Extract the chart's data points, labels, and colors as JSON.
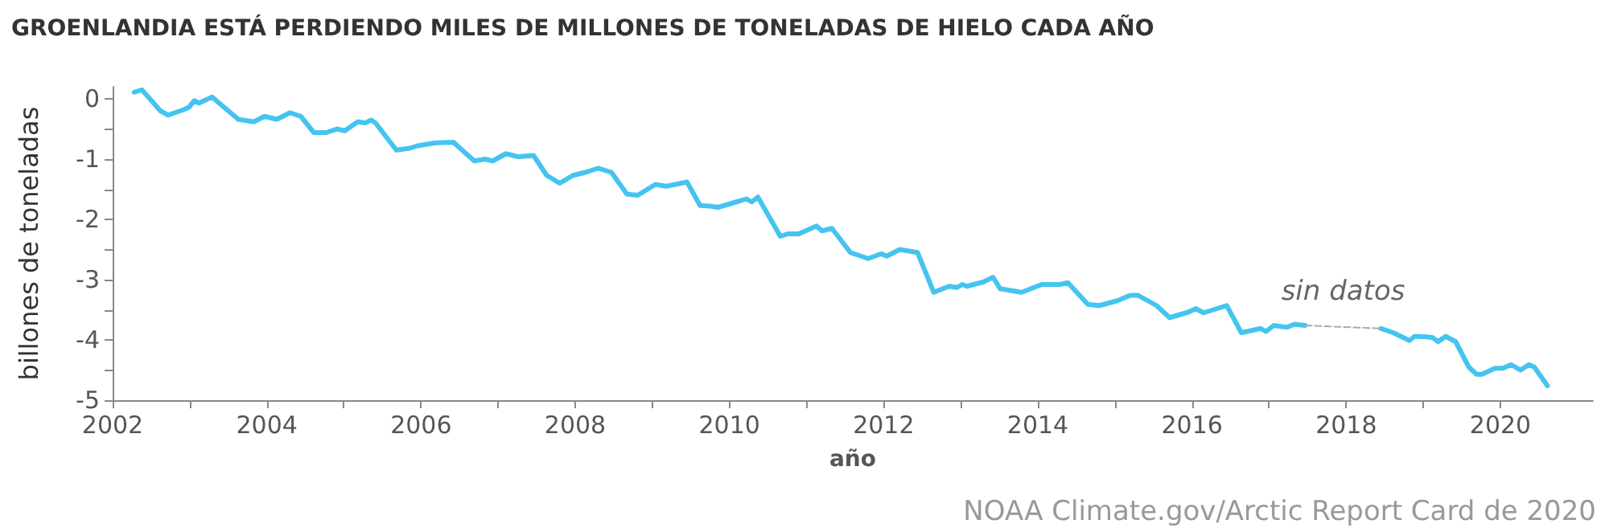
{
  "chart_data": {
    "type": "line",
    "title": "GROENLANDIA ESTÁ PERDIENDO MILES DE MILLONES DE TONELADAS DE HIELO CADA AÑO",
    "xlabel": "año",
    "ylabel": "billones de toneladas",
    "series": [
      {
        "color": "#45c4f0",
        "x": [
          2002.28,
          2002.38,
          2002.62,
          2002.72,
          2002.92,
          2002.99,
          2003.06,
          2003.12,
          2003.29,
          2003.63,
          2003.83,
          2003.97,
          2004.13,
          2004.3,
          2004.44,
          2004.61,
          2004.77,
          2004.91,
          2005.01,
          2005.18,
          2005.28,
          2005.35,
          2005.41,
          2005.68,
          2005.85,
          2005.95,
          2006.19,
          2006.42,
          2006.69,
          2006.83,
          2006.93,
          2007.1,
          2007.26,
          2007.46,
          2007.63,
          2007.8,
          2007.97,
          2008.13,
          2008.3,
          2008.47,
          2008.67,
          2008.81,
          2009.04,
          2009.18,
          2009.45,
          2009.62,
          2009.75,
          2009.85,
          2010.09,
          2010.22,
          2010.29,
          2010.37,
          2010.66,
          2010.76,
          2010.9,
          2011.13,
          2011.2,
          2011.33,
          2011.57,
          2011.8,
          2011.97,
          2012.04,
          2012.21,
          2012.44,
          2012.65,
          2012.85,
          2012.95,
          2013.02,
          2013.08,
          2013.29,
          2013.42,
          2013.51,
          2013.79,
          2014.05,
          2014.29,
          2014.39,
          2014.65,
          2014.8,
          2015.03,
          2015.2,
          2015.3,
          2015.54,
          2015.71,
          2015.95,
          2016.05,
          2016.15,
          2016.45,
          2016.64,
          2016.89,
          2016.96,
          2017.06,
          2017.23,
          2017.33,
          2017.47,
          2018.0,
          2018.45,
          2018.61,
          2018.82,
          2018.89,
          2019.05,
          2019.12,
          2019.19,
          2019.29,
          2019.42,
          2019.59,
          2019.69,
          2019.76,
          2019.93,
          2020.03,
          2020.14,
          2020.26,
          2020.37,
          2020.44,
          2020.61
        ],
        "values": [
          0.11,
          0.15,
          -0.2,
          -0.27,
          -0.18,
          -0.14,
          -0.03,
          -0.07,
          0.03,
          -0.34,
          -0.38,
          -0.29,
          -0.34,
          -0.23,
          -0.29,
          -0.56,
          -0.56,
          -0.5,
          -0.53,
          -0.38,
          -0.4,
          -0.35,
          -0.4,
          -0.85,
          -0.82,
          -0.78,
          -0.73,
          -0.72,
          -1.03,
          -1.0,
          -1.03,
          -0.91,
          -0.96,
          -0.94,
          -1.27,
          -1.4,
          -1.27,
          -1.22,
          -1.15,
          -1.22,
          -1.58,
          -1.6,
          -1.42,
          -1.45,
          -1.38,
          -1.77,
          -1.78,
          -1.8,
          -1.71,
          -1.66,
          -1.71,
          -1.63,
          -2.28,
          -2.24,
          -2.24,
          -2.11,
          -2.19,
          -2.15,
          -2.55,
          -2.65,
          -2.57,
          -2.61,
          -2.5,
          -2.55,
          -3.21,
          -3.11,
          -3.13,
          -3.08,
          -3.11,
          -3.04,
          -2.96,
          -3.15,
          -3.21,
          -3.08,
          -3.08,
          -3.05,
          -3.41,
          -3.43,
          -3.35,
          -3.26,
          -3.26,
          -3.43,
          -3.63,
          -3.54,
          -3.48,
          -3.55,
          -3.43,
          -3.88,
          -3.81,
          -3.86,
          -3.76,
          -3.79,
          -3.74,
          -3.76,
          null,
          -3.81,
          -3.88,
          -4.01,
          -3.94,
          -3.95,
          -3.96,
          -4.03,
          -3.94,
          -4.03,
          -4.45,
          -4.57,
          -4.57,
          -4.47,
          -4.47,
          -4.41,
          -4.5,
          -4.41,
          -4.45,
          -4.76
        ]
      },
      {
        "color": "#aaaaaa",
        "line_style": "dashed",
        "x": [
          2017.47,
          2018.45
        ],
        "values": [
          -3.76,
          -3.81
        ]
      }
    ],
    "xlim": [
      2002,
      2021.2
    ],
    "xticks": [
      2002,
      {
        "value": 2003,
        "label": null
      },
      2004,
      {
        "value": 2005,
        "label": null
      },
      2006,
      {
        "value": 2007,
        "label": null
      },
      2008,
      {
        "value": 2009,
        "label": null
      },
      2010,
      {
        "value": 2011,
        "label": null
      },
      2012,
      {
        "value": 2013,
        "label": null
      },
      2014,
      {
        "value": 2015,
        "label": null
      },
      2016,
      {
        "value": 2017,
        "label": null
      },
      2018,
      {
        "value": 2019,
        "label": null
      },
      2020
    ],
    "ylim": [
      -5,
      0.2
    ],
    "yticks": [
      -5,
      {
        "value": -4.5,
        "label": null
      },
      -4,
      {
        "value": -3.5,
        "label": null
      },
      -3,
      {
        "value": -2.5,
        "label": null
      },
      -2,
      {
        "value": -1.5,
        "label": null
      },
      -1,
      {
        "value": -0.5,
        "label": null
      },
      0
    ],
    "grid": false,
    "marker": "none",
    "line_style": "solid",
    "annotations": [
      "sin datos",
      "NOAA Climate.gov/Arctic Report Card de 2020"
    ]
  }
}
